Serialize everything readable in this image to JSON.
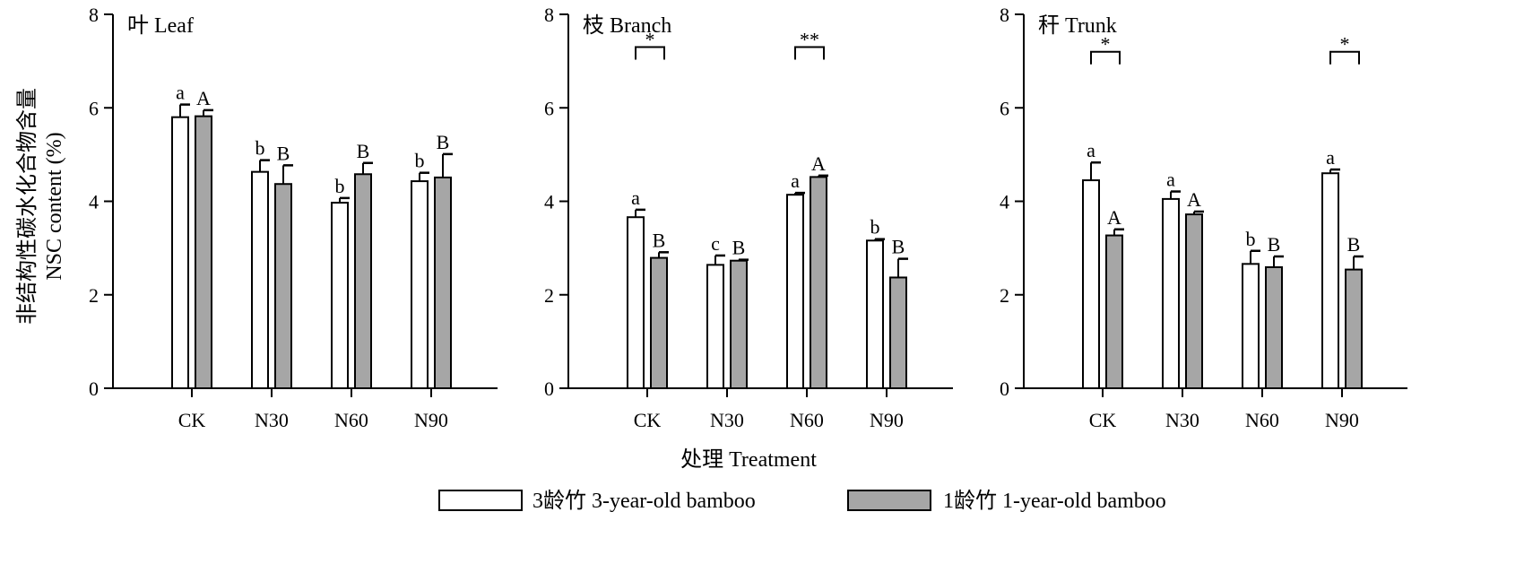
{
  "figure": {
    "y_axis_title_cn": "非结构性碳水化合物含量",
    "y_axis_title_en": "NSC content (%)",
    "x_axis_title": "处理 Treatment"
  },
  "legend": [
    {
      "label": "3龄竹 3-year-old bamboo",
      "color": "#ffffff"
    },
    {
      "label": "1龄竹 1-year-old bamboo",
      "color": "#a6a6a6"
    }
  ],
  "chart_data": [
    {
      "type": "bar",
      "title": "叶 Leaf",
      "categories": [
        "CK",
        "N30",
        "N60",
        "N90"
      ],
      "ylim": [
        0,
        8
      ],
      "yticks": [
        "0",
        "2",
        "4",
        "6",
        "8"
      ],
      "series": [
        {
          "name": "3龄竹 3-year-old bamboo",
          "values": [
            5.8,
            4.63,
            3.97,
            4.43
          ],
          "errors": [
            0.27,
            0.25,
            0.1,
            0.18
          ],
          "letters": [
            "a",
            "b",
            "b",
            "b"
          ]
        },
        {
          "name": "1龄竹 1-year-old bamboo",
          "values": [
            5.82,
            4.37,
            4.58,
            4.51
          ],
          "errors": [
            0.13,
            0.4,
            0.24,
            0.5
          ],
          "letters": [
            "A",
            "B",
            "B",
            "B"
          ]
        }
      ],
      "significance": []
    },
    {
      "type": "bar",
      "title": "枝 Branch",
      "categories": [
        "CK",
        "N30",
        "N60",
        "N90"
      ],
      "ylim": [
        0,
        8
      ],
      "yticks": [
        "0",
        "2",
        "4",
        "6",
        "8"
      ],
      "series": [
        {
          "name": "3龄竹 3-year-old bamboo",
          "values": [
            3.66,
            2.64,
            4.14,
            3.16
          ],
          "errors": [
            0.16,
            0.2,
            0.04,
            0.03
          ],
          "letters": [
            "a",
            "c",
            "a",
            "b"
          ]
        },
        {
          "name": "1龄竹 1-year-old bamboo",
          "values": [
            2.79,
            2.73,
            4.52,
            2.37
          ],
          "errors": [
            0.12,
            0.02,
            0.03,
            0.4
          ],
          "letters": [
            "B",
            "B",
            "A",
            "B"
          ]
        }
      ],
      "significance": [
        {
          "category": "CK",
          "text": "*",
          "height": 7.3
        },
        {
          "category": "N60",
          "text": "**",
          "height": 7.3
        }
      ]
    },
    {
      "type": "bar",
      "title": "秆 Trunk",
      "categories": [
        "CK",
        "N30",
        "N60",
        "N90"
      ],
      "ylim": [
        0,
        8
      ],
      "yticks": [
        "0",
        "2",
        "4",
        "6",
        "8"
      ],
      "series": [
        {
          "name": "3龄竹 3-year-old bamboo",
          "values": [
            4.45,
            4.05,
            2.66,
            4.6
          ],
          "errors": [
            0.38,
            0.16,
            0.28,
            0.08
          ],
          "letters": [
            "a",
            "a",
            "b",
            "a"
          ]
        },
        {
          "name": "1龄竹 1-year-old bamboo",
          "values": [
            3.27,
            3.72,
            2.59,
            2.54
          ],
          "errors": [
            0.13,
            0.06,
            0.23,
            0.28
          ],
          "letters": [
            "A",
            "A",
            "B",
            "B"
          ]
        }
      ],
      "significance": [
        {
          "category": "CK",
          "text": "*",
          "height": 7.2
        },
        {
          "category": "N90",
          "text": "*",
          "height": 7.2
        }
      ]
    }
  ]
}
